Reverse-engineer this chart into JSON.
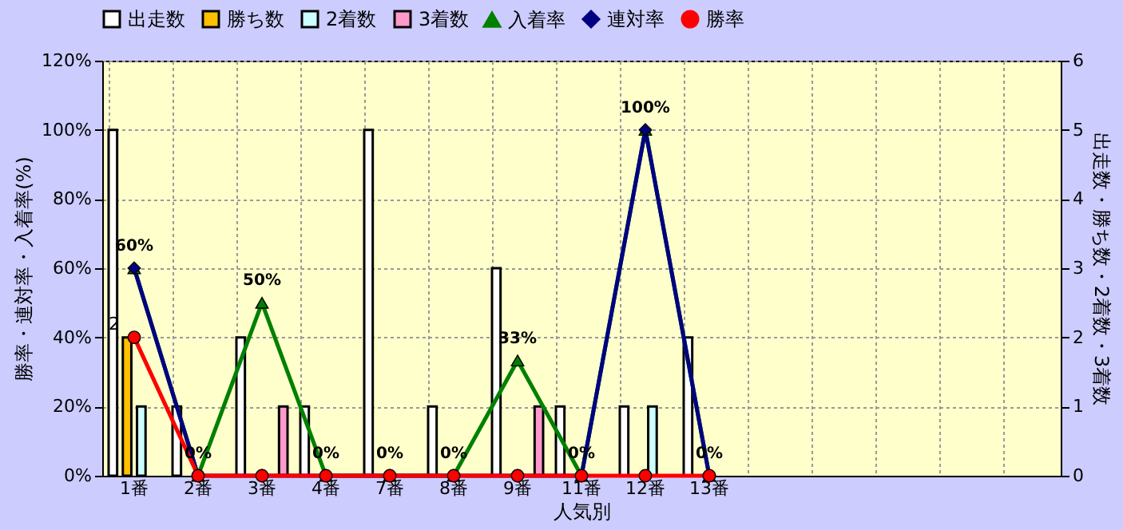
{
  "chart_data": {
    "type": "bar",
    "xlabel": "人気別",
    "ylabel": "勝率・連対率・入着率(%)",
    "y2label": "出走数・勝ち数・2着数・3着数",
    "categories": [
      "1番",
      "2番",
      "3番",
      "4番",
      "7番",
      "8番",
      "9番",
      "11番",
      "12番",
      "13番",
      null,
      null,
      null,
      null,
      null
    ],
    "series": [
      {
        "name": "出走数",
        "axis": "y2",
        "color": "#ffffff",
        "values": [
          5,
          1,
          2,
          1,
          5,
          1,
          3,
          1,
          1,
          2,
          null,
          null,
          null,
          null,
          null
        ]
      },
      {
        "name": "勝ち数",
        "axis": "y2",
        "color": "#ffc000",
        "values": [
          2,
          0,
          0,
          0,
          0,
          0,
          0,
          0,
          0,
          0,
          null,
          null,
          null,
          null,
          null
        ],
        "value_labels": [
          "2",
          null,
          null,
          null,
          null,
          null,
          null,
          null,
          null,
          null,
          null,
          null,
          null,
          null,
          null
        ]
      },
      {
        "name": "2着数",
        "axis": "y2",
        "color": "#ccffff",
        "values": [
          1,
          0,
          0,
          0,
          0,
          0,
          0,
          0,
          1,
          0,
          null,
          null,
          null,
          null,
          null
        ]
      },
      {
        "name": "3着数",
        "axis": "y2",
        "color": "#ff99cc",
        "values": [
          0,
          0,
          1,
          0,
          0,
          0,
          1,
          0,
          0,
          0,
          null,
          null,
          null,
          null,
          null
        ]
      },
      {
        "name": "入着率",
        "type": "line",
        "marker": "triangle",
        "color": "#008000",
        "values": [
          60,
          0,
          50,
          0,
          0,
          0,
          33.3,
          0,
          100,
          0,
          null,
          null,
          null,
          null,
          null
        ],
        "value_labels": [
          "60%",
          "0%",
          "50%",
          "0%",
          "0%",
          "0%",
          "33%",
          "0%",
          "100%",
          "0%",
          null,
          null,
          null,
          null,
          null
        ]
      },
      {
        "name": "連対率",
        "type": "line",
        "marker": "diamond",
        "color": "#000080",
        "values": [
          60,
          0,
          0,
          0,
          0,
          0,
          0,
          0,
          100,
          0,
          null,
          null,
          null,
          null,
          null
        ]
      },
      {
        "name": "勝率",
        "type": "line",
        "marker": "circle",
        "color": "#ff0000",
        "values": [
          40,
          0,
          0,
          0,
          0,
          0,
          0,
          0,
          0,
          0,
          null,
          null,
          null,
          null,
          null
        ]
      }
    ],
    "ylim": [
      0,
      120
    ],
    "yticks": [
      {
        "value": 0,
        "label": "0%"
      },
      {
        "value": 20,
        "label": "20%"
      },
      {
        "value": 40,
        "label": "40%"
      },
      {
        "value": 60,
        "label": "60%"
      },
      {
        "value": 80,
        "label": "80%"
      },
      {
        "value": 100,
        "label": "100%"
      },
      {
        "value": 120,
        "label": "120%"
      }
    ],
    "y2lim": [
      0,
      6
    ],
    "y2ticks": [
      0,
      1,
      2,
      3,
      4,
      5,
      6
    ],
    "grid": true,
    "legend": "top"
  }
}
